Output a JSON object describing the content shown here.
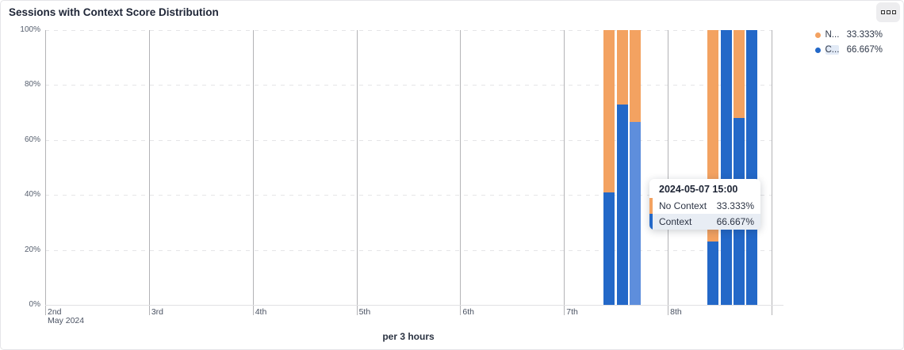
{
  "header": {
    "title": "Sessions with Context Score Distribution",
    "menu_icon": "grid-squares-icon"
  },
  "colors": {
    "no_context": "#f3a261",
    "context": "#2368c8",
    "context_highlight": "#5e8edc"
  },
  "legend": {
    "items": [
      {
        "abbrev": "N...",
        "value": "33.333%",
        "color": "#f3a261",
        "highlighted": false
      },
      {
        "abbrev": "C...",
        "value": "66.667%",
        "color": "#2368c8",
        "highlighted": true
      }
    ]
  },
  "tooltip": {
    "title": "2024-05-07 15:00",
    "rows": [
      {
        "label": "No Context",
        "value": "33.333%",
        "color": "#f3a261",
        "highlighted": false
      },
      {
        "label": "Context",
        "value": "66.667%",
        "color": "#2368c8",
        "highlighted": true
      }
    ]
  },
  "chart_data": {
    "type": "bar",
    "subtype": "stacked-percent-column",
    "title": "Sessions with Context Score Distribution",
    "xlabel": "per 3 hours",
    "ylabel": "",
    "ylim": [
      0,
      100
    ],
    "y_ticks": [
      "0%",
      "20%",
      "40%",
      "60%",
      "80%",
      "100%"
    ],
    "x_axis": {
      "month_label": "May 2024",
      "day_ticks": [
        "2nd",
        "3rd",
        "4th",
        "5th",
        "6th",
        "7th",
        "8th"
      ],
      "bin": "3 hours"
    },
    "legend_position": "top-right",
    "grid": "horizontal-dashed, vertical-day-lines",
    "series_names": [
      "No Context",
      "Context"
    ],
    "bars": [
      {
        "date": "2024-05-07",
        "hour": 9,
        "context": 41,
        "no_context": 59,
        "highlighted": false
      },
      {
        "date": "2024-05-07",
        "hour": 12,
        "context": 73,
        "no_context": 27,
        "highlighted": false
      },
      {
        "date": "2024-05-07",
        "hour": 15,
        "context": 66.667,
        "no_context": 33.333,
        "highlighted": true
      },
      {
        "date": "2024-05-08",
        "hour": 9,
        "context": 23,
        "no_context": 77,
        "highlighted": false
      },
      {
        "date": "2024-05-08",
        "hour": 12,
        "context": 100,
        "no_context": 0,
        "highlighted": false
      },
      {
        "date": "2024-05-08",
        "hour": 15,
        "context": 68,
        "no_context": 32,
        "highlighted": false
      },
      {
        "date": "2024-05-08",
        "hour": 18,
        "context": 100,
        "no_context": 0,
        "highlighted": false
      }
    ]
  },
  "footer": {
    "xlabel": "per 3 hours"
  }
}
